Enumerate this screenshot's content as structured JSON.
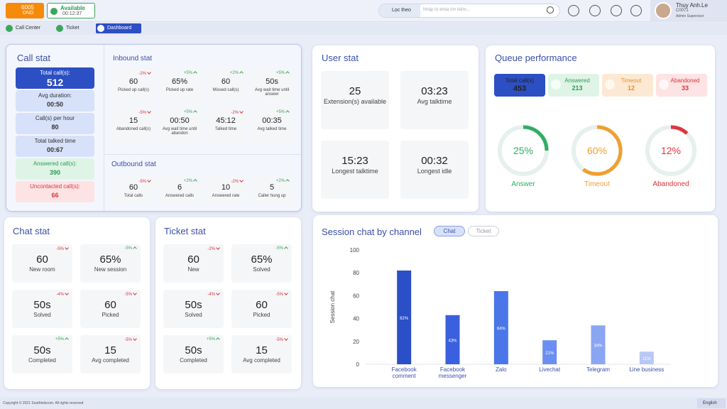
{
  "topbar": {
    "extension": "6005",
    "ext_status": "DND",
    "status": "Available",
    "timer": "00:12:37",
    "filter": "Lọc theo",
    "search_placeholder": "Nhập từ khóa tìm kiếm...",
    "user_name": "Thuy Anh.Le",
    "user_code": "C0071",
    "user_role": "Admin Supervisor"
  },
  "tabs": [
    "Call Center",
    "Ticket",
    "Dashboard"
  ],
  "call_stat": {
    "title": "Call stat",
    "summary": [
      {
        "label": "Total call(s):",
        "value": "512",
        "tone": "primary"
      },
      {
        "label": "Avg duration:",
        "value": "00:50",
        "tone": "normal"
      },
      {
        "label": "Call(s) per hour",
        "value": "80",
        "tone": "normal"
      },
      {
        "label": "Total talked time",
        "value": "00:67",
        "tone": "normal"
      },
      {
        "label": "Answered call(s):",
        "value": "390",
        "tone": "green"
      },
      {
        "label": "Uncontacted call(s):",
        "value": "66",
        "tone": "red"
      }
    ],
    "inbound": {
      "title": "Inbound stat",
      "tiles": [
        {
          "value": "60",
          "label": "Picked up call(s)",
          "change": "-2%",
          "trend": "down"
        },
        {
          "value": "65%",
          "label": "Picked up rate",
          "change": "+5%",
          "trend": "up"
        },
        {
          "value": "60",
          "label": "Missed call(s)",
          "change": "+2%",
          "trend": "up"
        },
        {
          "value": "50s",
          "label": "Avg wait time until answer",
          "change": "+5%",
          "trend": "up"
        },
        {
          "value": "15",
          "label": "Abandoned call(s)",
          "change": "-5%",
          "trend": "down"
        },
        {
          "value": "00:50",
          "label": "Avg wait time until abandon",
          "change": "+5%",
          "trend": "up"
        },
        {
          "value": "45:12",
          "label": "Talked time",
          "change": "-2%",
          "trend": "down"
        },
        {
          "value": "00:35",
          "label": "Avg talked time",
          "change": "+5%",
          "trend": "up"
        }
      ]
    },
    "outbound": {
      "title": "Outbound stat",
      "tiles": [
        {
          "value": "60",
          "label": "Total calls",
          "change": "-5%",
          "trend": "down"
        },
        {
          "value": "6",
          "label": "Answered calls",
          "change": "+2%",
          "trend": "up"
        },
        {
          "value": "10",
          "label": "Answered rate",
          "change": "-2%",
          "trend": "down"
        },
        {
          "value": "5",
          "label": "Caller hung up",
          "change": "+2%",
          "trend": "up"
        }
      ]
    }
  },
  "user_stat": {
    "title": "User stat",
    "tiles": [
      {
        "value": "25",
        "label": "Extension(s) available"
      },
      {
        "value": "03:23",
        "label": "Avg talktime"
      },
      {
        "value": "15:23",
        "label": "Longest talktime"
      },
      {
        "value": "00:32",
        "label": "Longest idle"
      }
    ]
  },
  "queue": {
    "title": "Queue performance",
    "badges": [
      {
        "label": "Total call(s)",
        "value": "453",
        "tone": "primary"
      },
      {
        "label": "Answered",
        "value": "213",
        "tone": "green"
      },
      {
        "label": "Timeout",
        "value": "12",
        "tone": "orange"
      },
      {
        "label": "Abandoned",
        "value": "33",
        "tone": "red"
      }
    ],
    "gauges": [
      {
        "value": 25,
        "label": "25%",
        "name": "Answer",
        "color": "#2fae64"
      },
      {
        "value": 60,
        "label": "60%",
        "name": "Timeout",
        "color": "#f0a030"
      },
      {
        "value": 12,
        "label": "12%",
        "name": "Abandoned",
        "color": "#e0353d"
      }
    ]
  },
  "chat_stat": {
    "title": "Chat stat",
    "tiles": [
      {
        "value": "60",
        "label": "New room",
        "change": "-5%",
        "trend": "down"
      },
      {
        "value": "65%",
        "label": "New session",
        "change": "-5%",
        "trend": "up"
      },
      {
        "value": "50s",
        "label": "Solved",
        "change": "-4%",
        "trend": "down"
      },
      {
        "value": "60",
        "label": "Picked",
        "change": "-5%",
        "trend": "down"
      },
      {
        "value": "50s",
        "label": "Completed",
        "change": "+5%",
        "trend": "up"
      },
      {
        "value": "15",
        "label": "Avg completed",
        "change": "-5%",
        "trend": "down"
      }
    ]
  },
  "ticket_stat": {
    "title": "Ticket stat",
    "tiles": [
      {
        "value": "60",
        "label": "New",
        "change": "-2%",
        "trend": "down"
      },
      {
        "value": "65%",
        "label": "Solved",
        "change": "-5%",
        "trend": "up"
      },
      {
        "value": "50s",
        "label": "Solved",
        "change": "-4%",
        "trend": "down"
      },
      {
        "value": "60",
        "label": "Picked",
        "change": "-5%",
        "trend": "down"
      },
      {
        "value": "50s",
        "label": "Completed",
        "change": "+5%",
        "trend": "up"
      },
      {
        "value": "15",
        "label": "Avg completed",
        "change": "-5%",
        "trend": "down"
      }
    ]
  },
  "chart_data": {
    "type": "bar",
    "title": "Session chat by channel",
    "toggles": [
      "Chat",
      "Ticket"
    ],
    "ylabel": "Session chat",
    "categories": [
      "Facebook comment",
      "Facebook messenger",
      "Zalo",
      "Livechat",
      "Telegram",
      "Line business"
    ],
    "values": [
      82,
      43,
      64,
      21,
      34,
      11
    ],
    "value_labels": [
      "82%",
      "43%",
      "64%",
      "21%",
      "34%",
      "11%"
    ],
    "colors": [
      "#2b4fc7",
      "#3a60df",
      "#4a76ea",
      "#6b8ef0",
      "#8aa6f3",
      "#b7c8f7"
    ],
    "ylim": [
      0,
      100
    ],
    "yticks": [
      0,
      20,
      40,
      60,
      80,
      100
    ],
    "grid": false
  },
  "footer": {
    "copyright": "Copyright © 2021 Southtelecom. All rights reserved",
    "language": "English"
  }
}
